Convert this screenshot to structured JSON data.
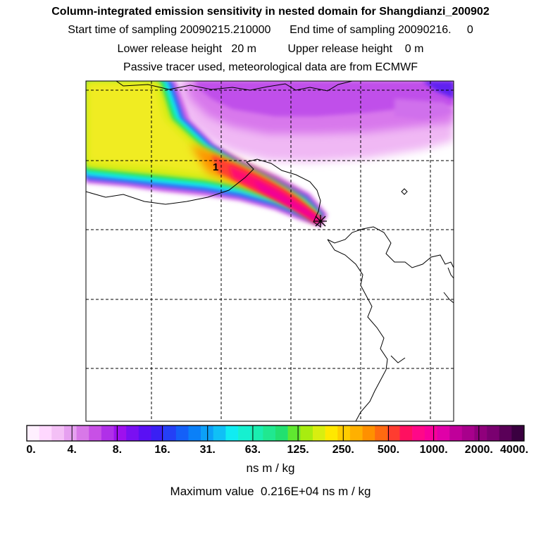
{
  "header": {
    "title": "Column-integrated emission sensitivity in nested domain for Shangdianzi_200902",
    "sampling": "Start time of sampling 20090215.210000      End time of sampling 20090216.     0",
    "release": "Lower release height   20 m          Upper release height    0 m",
    "tracer": "Passive tracer used, meteorological data are from ECMWF"
  },
  "map": {
    "contour_label": "1",
    "release_site_marker": "star-icon",
    "grid": true
  },
  "colorbar": {
    "labels": [
      "0.",
      "4.",
      "8.",
      "16.",
      "31.",
      "63.",
      "125.",
      "250.",
      "500.",
      "1000.",
      "2000.",
      "4000."
    ],
    "colors": [
      "#fff0ff",
      "#ffd8ff",
      "#f4c0f6",
      "#e6a0f0",
      "#d878e8",
      "#c850e6",
      "#b030e8",
      "#9e10ee",
      "#7a10f2",
      "#5a10f4",
      "#3a20f4",
      "#2440f6",
      "#1460f8",
      "#0a80f8",
      "#0ca0f8",
      "#10c0f6",
      "#10ecf2",
      "#16f0d0",
      "#1aeeb0",
      "#20e890",
      "#22e070",
      "#60e830",
      "#a8ec10",
      "#d8ee10",
      "#ffe800",
      "#ffcc00",
      "#ffb000",
      "#ff9000",
      "#ff6a10",
      "#ff3c30",
      "#ff1060",
      "#ff0888",
      "#f8009a",
      "#e000a8",
      "#c0009a",
      "#a8008c",
      "#90007c",
      "#7a0070",
      "#5a0058",
      "#3a0040"
    ],
    "units": "ns m / kg",
    "max_value": "Maximum value  0.216E+04 ns m / kg"
  }
}
